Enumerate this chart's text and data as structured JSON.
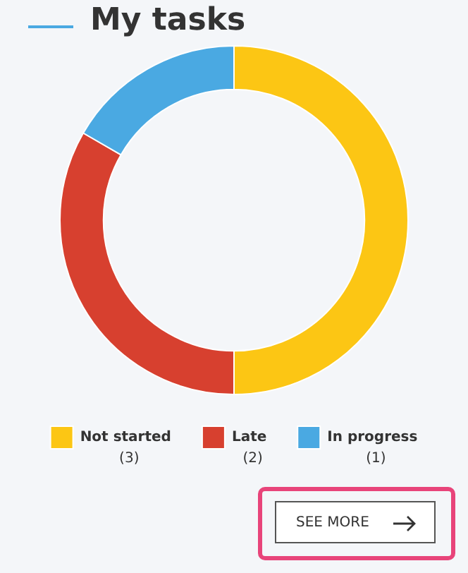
{
  "chart_data": {
    "type": "donut",
    "title": "My tasks",
    "categories": [
      "Not started",
      "Late",
      "In progress"
    ],
    "values": [
      3,
      2,
      1
    ],
    "colors": [
      "#fcc614",
      "#d7402f",
      "#4aa9e2"
    ],
    "legend": "bottom",
    "value_labels": [
      "(3)",
      "(2)",
      "(1)"
    ],
    "annotations": [
      "SEE MORE"
    ]
  }
}
